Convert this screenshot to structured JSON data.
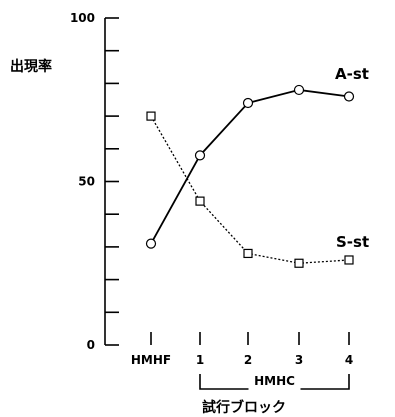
{
  "chart_data": {
    "type": "line",
    "title": "",
    "ylabel": "出現率",
    "xlabel": "試行ブロック",
    "ylim": [
      0,
      100
    ],
    "yticks": [
      {
        "value": 0,
        "label": "0"
      },
      {
        "value": 50,
        "label": "50"
      },
      {
        "value": 100,
        "label": "100"
      }
    ],
    "categories": [
      "HMHF",
      "1",
      "2",
      "3",
      "4"
    ],
    "group_bracket": {
      "label": "HMHC",
      "from": "1",
      "to": "4"
    },
    "grid": false,
    "series": [
      {
        "name": "A-st",
        "marker": "circle",
        "line": "solid",
        "values": [
          31,
          58,
          74,
          78,
          76
        ]
      },
      {
        "name": "S-st",
        "marker": "square",
        "line": "dotted",
        "values": [
          70,
          44,
          28,
          25,
          26
        ]
      }
    ]
  }
}
